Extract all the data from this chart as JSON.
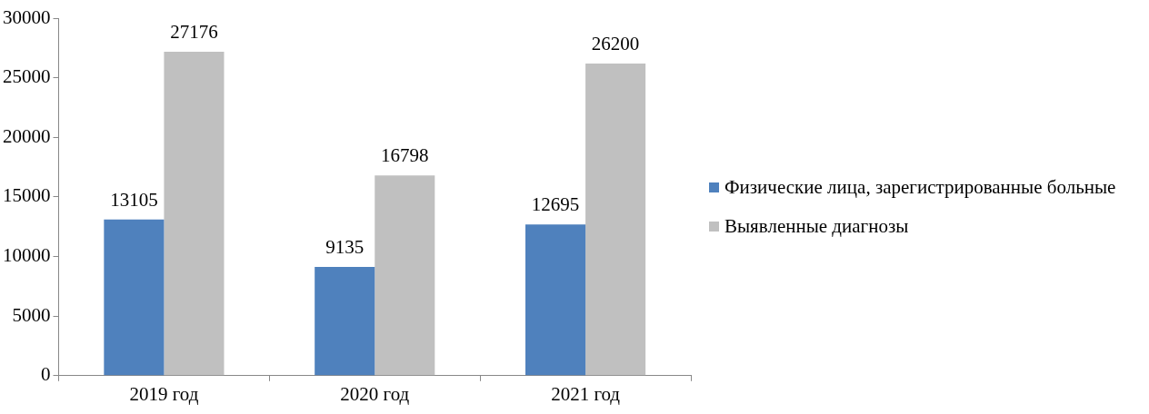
{
  "chart_data": {
    "type": "bar",
    "categories": [
      "2019 год",
      "2020 год",
      "2021 год"
    ],
    "series": [
      {
        "name": "Физические лица, зарегистрированные больные",
        "color": "#4f81bd",
        "values": [
          13105,
          9135,
          12695
        ]
      },
      {
        "name": "Выявленные диагнозы",
        "color": "#c0c0c0",
        "values": [
          27176,
          16798,
          26200
        ]
      }
    ],
    "ylim": [
      0,
      30000
    ],
    "yticks": [
      0,
      5000,
      10000,
      15000,
      20000,
      25000,
      30000
    ],
    "grid": false,
    "legend": "right",
    "data_labels": true
  }
}
